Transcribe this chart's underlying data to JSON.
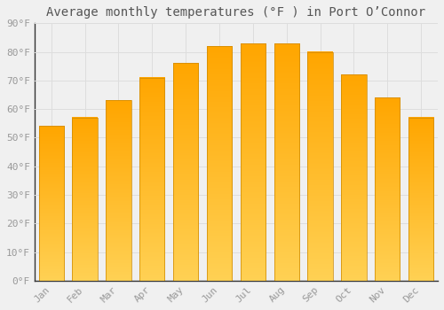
{
  "title": "Average monthly temperatures (°F ) in Port O’Connor",
  "months": [
    "Jan",
    "Feb",
    "Mar",
    "Apr",
    "May",
    "Jun",
    "Jul",
    "Aug",
    "Sep",
    "Oct",
    "Nov",
    "Dec"
  ],
  "values": [
    54,
    57,
    63,
    71,
    76,
    82,
    83,
    83,
    80,
    72,
    64,
    57
  ],
  "bar_color_bottom": "#FFA500",
  "bar_color_top": "#FFD055",
  "background_color": "#f0f0f0",
  "plot_bg_color": "#f0f0f0",
  "ylim": [
    0,
    90
  ],
  "yticks": [
    0,
    10,
    20,
    30,
    40,
    50,
    60,
    70,
    80,
    90
  ],
  "ytick_labels": [
    "0°F",
    "10°F",
    "20°F",
    "30°F",
    "40°F",
    "50°F",
    "60°F",
    "70°F",
    "80°F",
    "90°F"
  ],
  "title_fontsize": 10,
  "tick_fontsize": 8,
  "tick_color": "#999999",
  "grid_color": "#dddddd",
  "bar_width": 0.75
}
